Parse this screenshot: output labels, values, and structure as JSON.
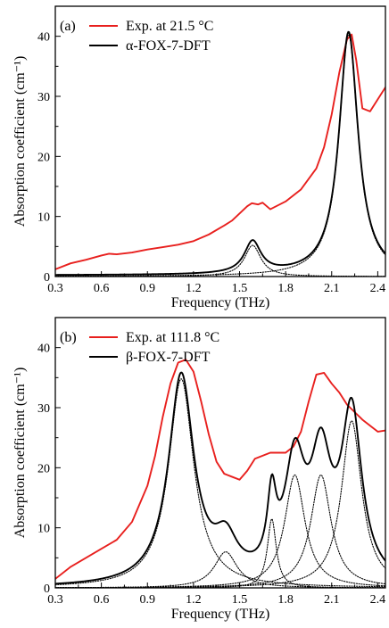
{
  "chart_data": [
    {
      "type": "line",
      "panel_label": "(a)",
      "xlabel": "Frequency (THz)",
      "ylabel": "Absorption coefficient (cm⁻¹)",
      "xlim": [
        0.3,
        2.45
      ],
      "ylim": [
        0,
        45
      ],
      "x_ticks": [
        "0.3",
        "0.6",
        "0.9",
        "1.2",
        "1.5",
        "1.8",
        "2.1",
        "2.4"
      ],
      "y_ticks": [
        "0",
        "10",
        "20",
        "30",
        "40"
      ],
      "legend_position": "top-left",
      "series": [
        {
          "name": "Exp. at 21.5 °C",
          "style": "solid",
          "color": "#e8201e",
          "x": [
            0.3,
            0.4,
            0.5,
            0.6,
            0.65,
            0.7,
            0.8,
            0.9,
            1.0,
            1.1,
            1.2,
            1.3,
            1.4,
            1.45,
            1.5,
            1.55,
            1.58,
            1.62,
            1.65,
            1.7,
            1.8,
            1.9,
            2.0,
            2.05,
            2.1,
            2.15,
            2.2,
            2.23,
            2.26,
            2.3,
            2.35,
            2.4,
            2.45
          ],
          "y": [
            1.2,
            2.2,
            2.8,
            3.5,
            3.8,
            3.7,
            4.0,
            4.5,
            4.9,
            5.3,
            5.9,
            7.0,
            8.5,
            9.3,
            10.5,
            11.7,
            12.2,
            12.0,
            12.3,
            11.2,
            12.5,
            14.5,
            18.0,
            21.5,
            27.0,
            34.0,
            39.5,
            40.3,
            36.0,
            28.0,
            27.5,
            29.5,
            31.5
          ]
        },
        {
          "name": "α-FOX-7-DFT",
          "style": "solid",
          "color": "#000000",
          "peaks": [
            {
              "center": 1.585,
              "height": 5.3,
              "width": 0.065
            },
            {
              "center": 2.21,
              "height": 40.5,
              "width": 0.075
            }
          ],
          "baseline": 0.2
        },
        {
          "style": "dotted",
          "color": "#000000",
          "peaks": [
            {
              "center": 1.585,
              "height": 5.2,
              "width": 0.065
            }
          ],
          "baseline": 0
        },
        {
          "style": "dotted",
          "color": "#000000",
          "peaks": [
            {
              "center": 2.21,
              "height": 40.3,
              "width": 0.075
            }
          ],
          "baseline": 0
        }
      ]
    },
    {
      "type": "line",
      "panel_label": "(b)",
      "xlabel": "Frequency (THz)",
      "ylabel": "Absorption coefficient (cm⁻¹)",
      "xlim": [
        0.3,
        2.45
      ],
      "ylim": [
        0,
        45
      ],
      "x_ticks": [
        "0.3",
        "0.6",
        "0.9",
        "1.2",
        "1.5",
        "1.8",
        "2.1",
        "2.4"
      ],
      "y_ticks": [
        "0",
        "10",
        "20",
        "30",
        "40"
      ],
      "legend_position": "top-left",
      "series": [
        {
          "name": "Exp. at 111.8 °C",
          "style": "solid",
          "color": "#e8201e",
          "x": [
            0.3,
            0.4,
            0.5,
            0.6,
            0.7,
            0.8,
            0.9,
            0.95,
            1.0,
            1.05,
            1.1,
            1.15,
            1.2,
            1.25,
            1.3,
            1.35,
            1.4,
            1.45,
            1.5,
            1.55,
            1.6,
            1.7,
            1.8,
            1.85,
            1.9,
            1.95,
            2.0,
            2.05,
            2.1,
            2.15,
            2.2,
            2.3,
            2.4,
            2.45
          ],
          "y": [
            1.5,
            3.5,
            5.0,
            6.5,
            8.0,
            11.0,
            17.0,
            22.0,
            28.5,
            34.0,
            37.5,
            38.0,
            36.0,
            31.0,
            25.5,
            21.0,
            19.0,
            18.5,
            18.0,
            19.5,
            21.5,
            22.5,
            22.5,
            23.5,
            26.0,
            31.0,
            35.5,
            35.8,
            34.0,
            32.5,
            30.5,
            28.0,
            26.0,
            26.2
          ]
        },
        {
          "name": "β-FOX-7-DFT",
          "style": "solid",
          "color": "#000000",
          "peaks": [
            {
              "center": 1.12,
              "height": 34.8,
              "width": 0.1
            },
            {
              "center": 1.41,
              "height": 6.0,
              "width": 0.09
            },
            {
              "center": 1.71,
              "height": 11.5,
              "width": 0.035
            },
            {
              "center": 1.86,
              "height": 18.8,
              "width": 0.08
            },
            {
              "center": 2.03,
              "height": 18.8,
              "width": 0.08
            },
            {
              "center": 2.23,
              "height": 27.8,
              "width": 0.08
            }
          ],
          "baseline": 0
        },
        {
          "style": "dotted",
          "color": "#000000",
          "peaks": [
            {
              "center": 1.12,
              "height": 34.8,
              "width": 0.1
            }
          ],
          "baseline": 0
        },
        {
          "style": "dotted",
          "color": "#000000",
          "peaks": [
            {
              "center": 1.41,
              "height": 6.0,
              "width": 0.09
            }
          ],
          "baseline": 0
        },
        {
          "style": "dotted",
          "color": "#000000",
          "peaks": [
            {
              "center": 1.71,
              "height": 11.5,
              "width": 0.035
            }
          ],
          "baseline": 0
        },
        {
          "style": "dotted",
          "color": "#000000",
          "peaks": [
            {
              "center": 1.86,
              "height": 18.8,
              "width": 0.08
            }
          ],
          "baseline": 0
        },
        {
          "style": "dotted",
          "color": "#000000",
          "peaks": [
            {
              "center": 2.03,
              "height": 18.8,
              "width": 0.08
            }
          ],
          "baseline": 0
        },
        {
          "style": "dotted",
          "color": "#000000",
          "peaks": [
            {
              "center": 2.23,
              "height": 27.8,
              "width": 0.08
            }
          ],
          "baseline": 0
        }
      ]
    }
  ]
}
